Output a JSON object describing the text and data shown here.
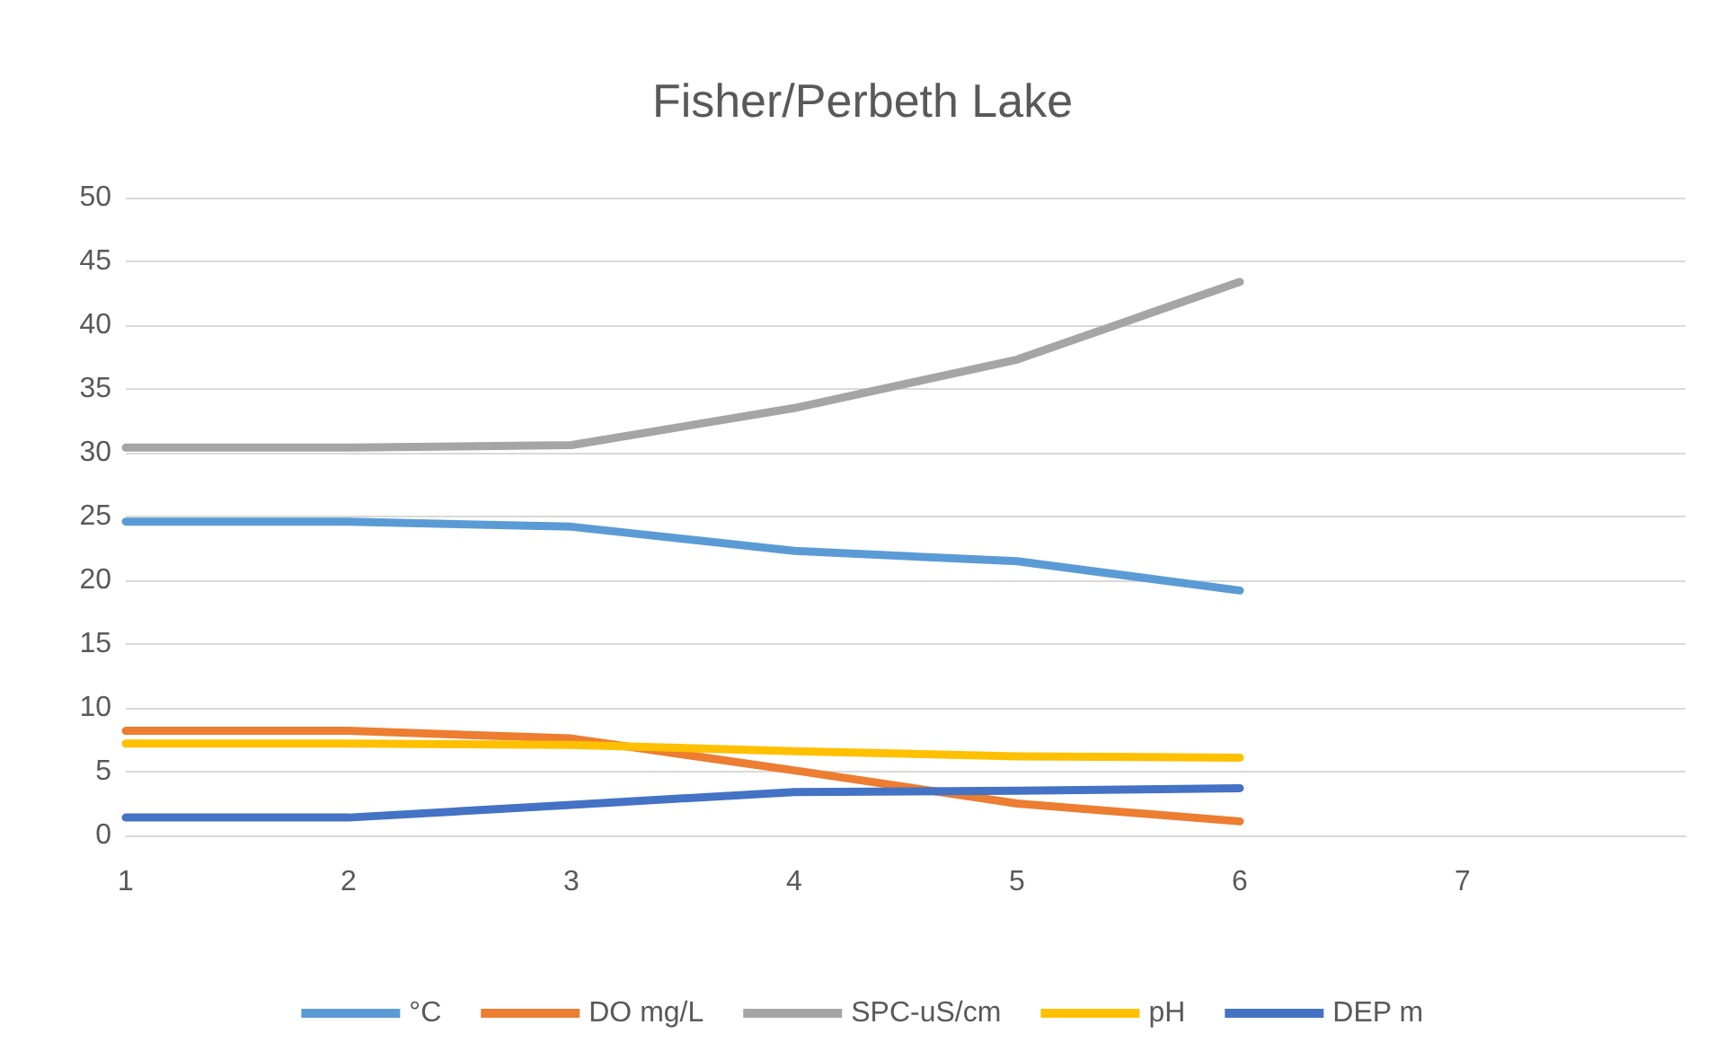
{
  "chart_data": {
    "type": "line",
    "title": "Fisher/Perbeth Lake",
    "categories": [
      "1",
      "2",
      "3",
      "4",
      "5",
      "6",
      "7"
    ],
    "series": [
      {
        "name": "°C",
        "color": "#5b9bd5",
        "values": [
          24.6,
          24.6,
          24.2,
          22.3,
          21.5,
          19.2,
          null
        ]
      },
      {
        "name": "DO mg/L",
        "color": "#ed7d31",
        "values": [
          8.2,
          8.2,
          7.6,
          5.1,
          2.5,
          1.1,
          null
        ]
      },
      {
        "name": "SPC-uS/cm",
        "color": "#a5a5a5",
        "values": [
          30.4,
          30.4,
          30.6,
          33.5,
          37.3,
          43.4,
          null
        ]
      },
      {
        "name": "pH",
        "color": "#ffc000",
        "values": [
          7.2,
          7.2,
          7.1,
          6.6,
          6.2,
          6.1,
          null
        ]
      },
      {
        "name": "DEP m",
        "color": "#4472c4",
        "values": [
          1.4,
          1.4,
          2.4,
          3.4,
          3.5,
          3.7,
          null
        ]
      }
    ],
    "ylim": [
      0,
      50
    ],
    "yticks": [
      0,
      5,
      10,
      15,
      20,
      25,
      30,
      35,
      40,
      45,
      50
    ],
    "grid": "y",
    "legend": "bottom",
    "marker": "none",
    "line_style": "solid"
  }
}
